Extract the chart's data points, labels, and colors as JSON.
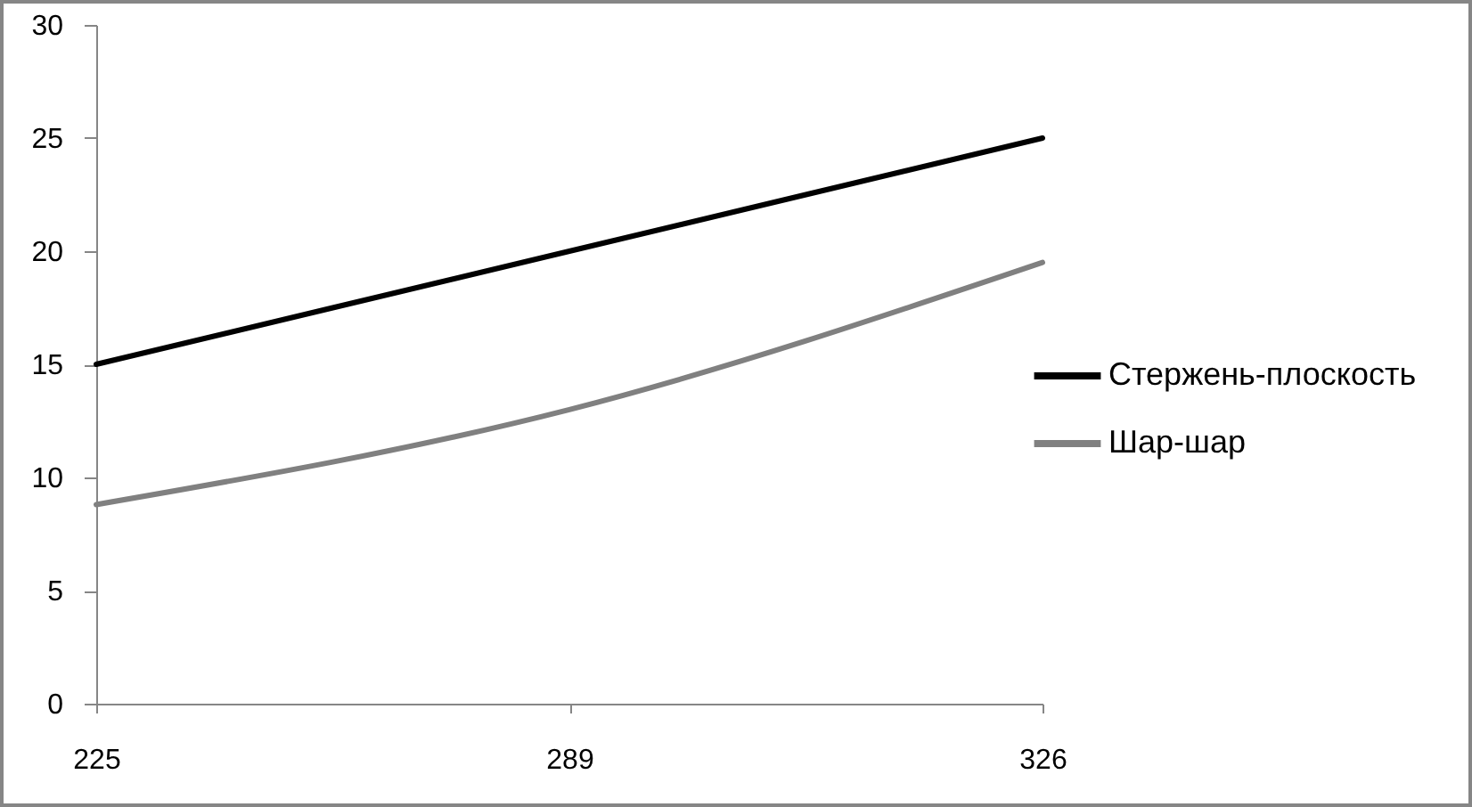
{
  "chart_data": {
    "type": "line",
    "categories": [
      "225",
      "289",
      "326"
    ],
    "ylim": [
      0,
      30
    ],
    "yticks": [
      0,
      5,
      10,
      15,
      20,
      25,
      30
    ],
    "legend": "right",
    "series": [
      {
        "name": "Стержень-плоскость",
        "color": "#000000",
        "values": [
          15,
          20,
          25
        ]
      },
      {
        "name": "Шар-шар",
        "color": "#808080",
        "values": [
          8.8,
          13,
          19.5
        ]
      }
    ]
  }
}
